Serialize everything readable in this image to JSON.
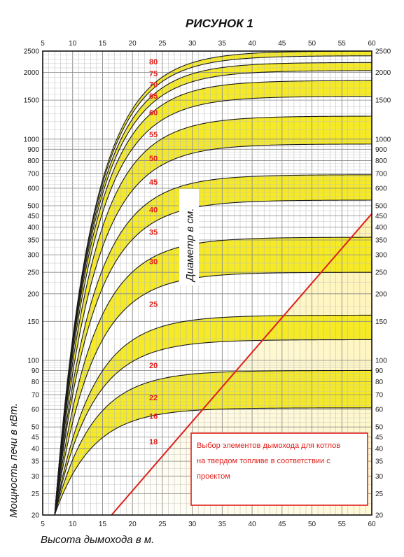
{
  "chart_data": {
    "type": "area",
    "title": "РИСУНОК 1",
    "xlabel": "Высота дымохода в м.",
    "ylabel": "Мощность печи в кВт.",
    "series_axis_label": "Диаметр в см.",
    "note": [
      "Выбор элементов дымохода для котлов",
      "на твердом топливе в соответствии с",
      "проектом"
    ],
    "xlim": [
      5,
      60
    ],
    "ylim": [
      20,
      2500
    ],
    "y_scale": "log",
    "x_ticks": [
      5,
      10,
      15,
      20,
      25,
      30,
      35,
      40,
      45,
      50,
      55,
      60
    ],
    "y_ticks": [
      20,
      25,
      30,
      35,
      40,
      45,
      50,
      60,
      70,
      80,
      90,
      100,
      150,
      200,
      250,
      300,
      350,
      400,
      450,
      500,
      600,
      700,
      800,
      900,
      1000,
      1500,
      2000,
      2500
    ],
    "diameter_labels": [
      "16",
      "18",
      "20",
      "22",
      "25",
      "30",
      "35",
      "40",
      "45",
      "50",
      "55",
      "60",
      "65",
      "70",
      "75",
      "80"
    ],
    "diameter_label_power": [
      56,
      43,
      95,
      68,
      180,
      280,
      380,
      480,
      640,
      820,
      1050,
      1320,
      1570,
      1770,
      1980,
      2240
    ],
    "curve_start_x": 7,
    "curve_power_at_60m": [
      61,
      90,
      124,
      160,
      250,
      360,
      530,
      690,
      950,
      1270,
      1560,
      1840,
      2040,
      2220,
      2380,
      2500
    ],
    "limit_line": [
      [
        16.5,
        20
      ],
      [
        60,
        460
      ]
    ],
    "colors": {
      "band": "#f5ea23",
      "limit_line": "#e0201b",
      "valid_area": "#fff6c4",
      "note": "#e0201b"
    }
  }
}
